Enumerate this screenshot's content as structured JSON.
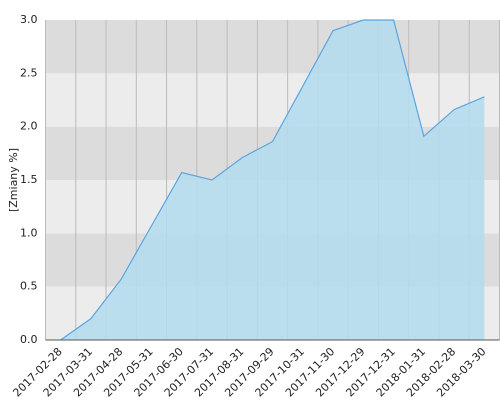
{
  "chart_data": {
    "type": "area",
    "y_label": "[Zmiany %]",
    "categories": [
      "2017-02-28",
      "2017-03-31",
      "2017-04-28",
      "2017-05-31",
      "2017-06-30",
      "2017-07-31",
      "2017-08-31",
      "2017-09-29",
      "2017-10-31",
      "2017-11-30",
      "2017-12-29",
      "2017-12-31",
      "2018-01-31",
      "2018-02-28",
      "2018-03-30"
    ],
    "values": [
      0.0,
      0.2,
      0.57,
      1.07,
      1.57,
      1.5,
      1.71,
      1.86,
      2.38,
      2.9,
      3.0,
      3.0,
      1.91,
      2.16,
      2.28
    ],
    "color": "#5aa5e0",
    "fill": "#b3dcee",
    "ylim": [
      0,
      3
    ],
    "yticks": [
      {
        "value": 0,
        "label": "0.0"
      },
      {
        "value": 0.5,
        "label": "0.5"
      },
      {
        "value": 1,
        "label": "1.0"
      },
      {
        "value": 1.5,
        "label": "1.5"
      },
      {
        "value": 2,
        "label": "2.0"
      },
      {
        "value": 2.5,
        "label": "2.5"
      },
      {
        "value": 3,
        "label": "3.0"
      }
    ],
    "grid": true
  }
}
